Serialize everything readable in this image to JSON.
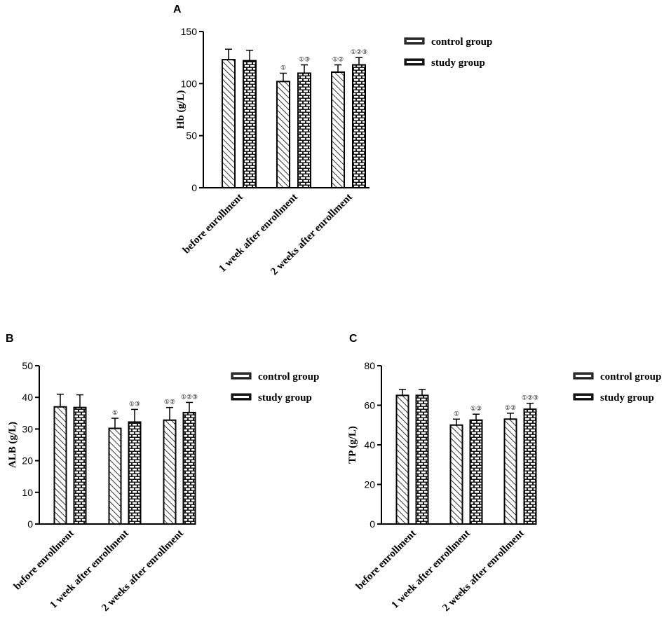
{
  "colors": {
    "ink": "#000000",
    "bar_fill": "#ffffff",
    "brick_fill": "#1a1a1a"
  },
  "legend_entries": [
    {
      "label": "control group",
      "pattern": "hatch"
    },
    {
      "label": "study group",
      "pattern": "brick"
    }
  ],
  "chart_data": [
    {
      "panel": "A",
      "type": "bar",
      "xlabel": "",
      "ylabel": "Hb (g/L)",
      "ylim": [
        0,
        150
      ],
      "yticks": [
        0,
        50,
        100,
        150
      ],
      "categories": [
        "before enrollment",
        "1 week after enrollment",
        "2 weeks after enrollment"
      ],
      "series": [
        {
          "name": "control group",
          "values": [
            123,
            102,
            111
          ],
          "errors": [
            10,
            8,
            7
          ]
        },
        {
          "name": "study group",
          "values": [
            122,
            110,
            118
          ],
          "errors": [
            10,
            8,
            7
          ]
        }
      ],
      "annotations": [
        [
          "",
          ""
        ],
        [
          "①",
          "①③"
        ],
        [
          "①②",
          "①②③"
        ]
      ],
      "legend": "right"
    },
    {
      "panel": "B",
      "type": "bar",
      "xlabel": "",
      "ylabel": "ALB (g/L)",
      "ylim": [
        0,
        50
      ],
      "yticks": [
        0,
        10,
        20,
        30,
        40,
        50
      ],
      "categories": [
        "before enrollment",
        "1 week after enrollment",
        "2 weeks after enrollment"
      ],
      "series": [
        {
          "name": "control group",
          "values": [
            37,
            30.2,
            32.8
          ],
          "errors": [
            4,
            3.2,
            4
          ]
        },
        {
          "name": "study group",
          "values": [
            36.8,
            32.2,
            35.2
          ],
          "errors": [
            4,
            4,
            3.2
          ]
        }
      ],
      "annotations": [
        [
          "",
          ""
        ],
        [
          "①",
          "①③"
        ],
        [
          "①②",
          "①②③"
        ]
      ],
      "legend": "right"
    },
    {
      "panel": "C",
      "type": "bar",
      "xlabel": "",
      "ylabel": "TP (g/L)",
      "ylim": [
        0,
        80
      ],
      "yticks": [
        0,
        20,
        40,
        60,
        80
      ],
      "categories": [
        "before enrollment",
        "1 week after enrollment",
        "2 weeks after enrollment"
      ],
      "series": [
        {
          "name": "control group",
          "values": [
            65,
            50,
            53
          ],
          "errors": [
            3,
            3,
            3
          ]
        },
        {
          "name": "study group",
          "values": [
            65,
            52.5,
            58
          ],
          "errors": [
            3,
            3,
            3
          ]
        }
      ],
      "annotations": [
        [
          "",
          ""
        ],
        [
          "①",
          "①③"
        ],
        [
          "①②",
          "①②③"
        ]
      ],
      "legend": "right"
    }
  ]
}
